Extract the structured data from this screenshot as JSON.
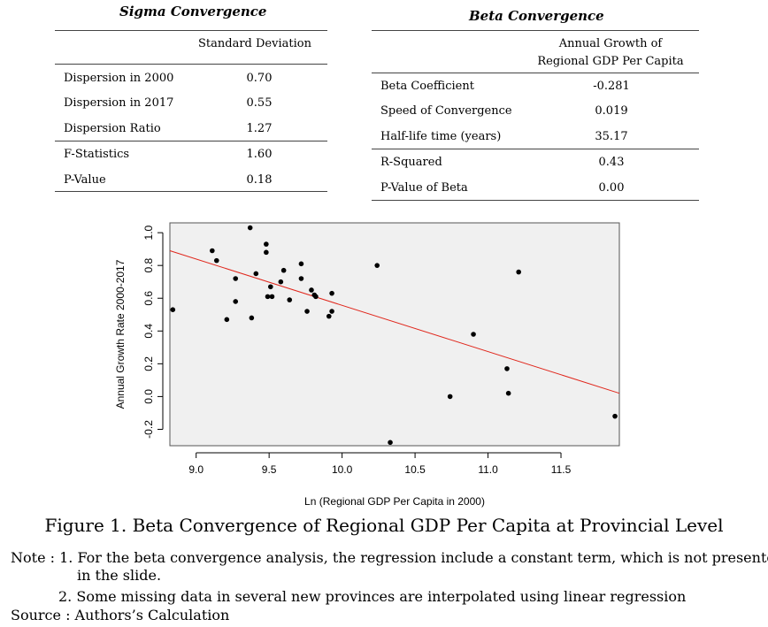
{
  "sigma": {
    "title": "Sigma Convergence",
    "column_header": "Standard Deviation",
    "rows": [
      {
        "label": "Dispersion in 2000",
        "value": "0.70"
      },
      {
        "label": "Dispersion in 2017",
        "value": "0.55"
      },
      {
        "label": "Dispersion Ratio",
        "value": "1.27"
      },
      {
        "label": "F-Statistics",
        "value": "1.60"
      },
      {
        "label": "P-Value",
        "value": "0.18"
      }
    ]
  },
  "beta": {
    "title": "Beta Convergence",
    "column_header_line1": "Annual Growth of",
    "column_header_line2": "Regional GDP Per Capita",
    "rows": [
      {
        "label": "Beta Coefficient",
        "value": "-0.281"
      },
      {
        "label": "Speed of Convergence",
        "value": "0.019"
      },
      {
        "label": "Half-life time (years)",
        "value": "35.17"
      },
      {
        "label": "R-Squared",
        "value": "0.43"
      },
      {
        "label": "P-Value of Beta",
        "value": "0.00"
      }
    ]
  },
  "chart_data": {
    "type": "scatter",
    "title": "",
    "xlabel": "Ln (Regional GDP Per Capita in 2000)",
    "ylabel": "Annual Growth Rate 2000-2017",
    "xlim": [
      8.82,
      11.9
    ],
    "ylim": [
      -0.3,
      1.06
    ],
    "x_ticks": [
      "9.0",
      "9.5",
      "10.0",
      "10.5",
      "11.0",
      "11.5"
    ],
    "y_ticks": [
      "-0.2",
      "0.0",
      "0.2",
      "0.4",
      "0.6",
      "0.8",
      "1.0"
    ],
    "grid": false,
    "background": "#f0f0f0",
    "fit_line": {
      "x": [
        8.82,
        11.9
      ],
      "y": [
        0.89,
        0.02
      ],
      "color": "#e0261b"
    },
    "points": [
      {
        "x": 8.84,
        "y": 0.53
      },
      {
        "x": 9.11,
        "y": 0.89
      },
      {
        "x": 9.14,
        "y": 0.83
      },
      {
        "x": 9.21,
        "y": 0.47
      },
      {
        "x": 9.27,
        "y": 0.72
      },
      {
        "x": 9.27,
        "y": 0.58
      },
      {
        "x": 9.37,
        "y": 1.03
      },
      {
        "x": 9.38,
        "y": 0.48
      },
      {
        "x": 9.41,
        "y": 0.75
      },
      {
        "x": 9.48,
        "y": 0.93
      },
      {
        "x": 9.48,
        "y": 0.88
      },
      {
        "x": 9.49,
        "y": 0.61
      },
      {
        "x": 9.51,
        "y": 0.67
      },
      {
        "x": 9.52,
        "y": 0.61
      },
      {
        "x": 9.58,
        "y": 0.7
      },
      {
        "x": 9.6,
        "y": 0.77
      },
      {
        "x": 9.64,
        "y": 0.59
      },
      {
        "x": 9.72,
        "y": 0.81
      },
      {
        "x": 9.72,
        "y": 0.72
      },
      {
        "x": 9.76,
        "y": 0.52
      },
      {
        "x": 9.79,
        "y": 0.65
      },
      {
        "x": 9.81,
        "y": 0.62
      },
      {
        "x": 9.82,
        "y": 0.61
      },
      {
        "x": 9.91,
        "y": 0.49
      },
      {
        "x": 9.93,
        "y": 0.52
      },
      {
        "x": 9.93,
        "y": 0.63
      },
      {
        "x": 10.24,
        "y": 0.8
      },
      {
        "x": 10.33,
        "y": -0.28
      },
      {
        "x": 10.74,
        "y": 0.0
      },
      {
        "x": 10.9,
        "y": 0.38
      },
      {
        "x": 11.13,
        "y": 0.17
      },
      {
        "x": 11.14,
        "y": 0.02
      },
      {
        "x": 11.21,
        "y": 0.76
      },
      {
        "x": 11.87,
        "y": -0.12
      }
    ]
  },
  "caption": "Figure 1. Beta Convergence of Regional GDP Per Capita at Provincial Level",
  "notes": {
    "line1": "Note : 1.  For the beta convergence analysis, the regression include a constant term, which is not presented",
    "line2": "in the slide.",
    "line3": "2. Some missing data in several new provinces are interpolated using linear regression",
    "line4": "Source :  Authors’s Calculation"
  }
}
